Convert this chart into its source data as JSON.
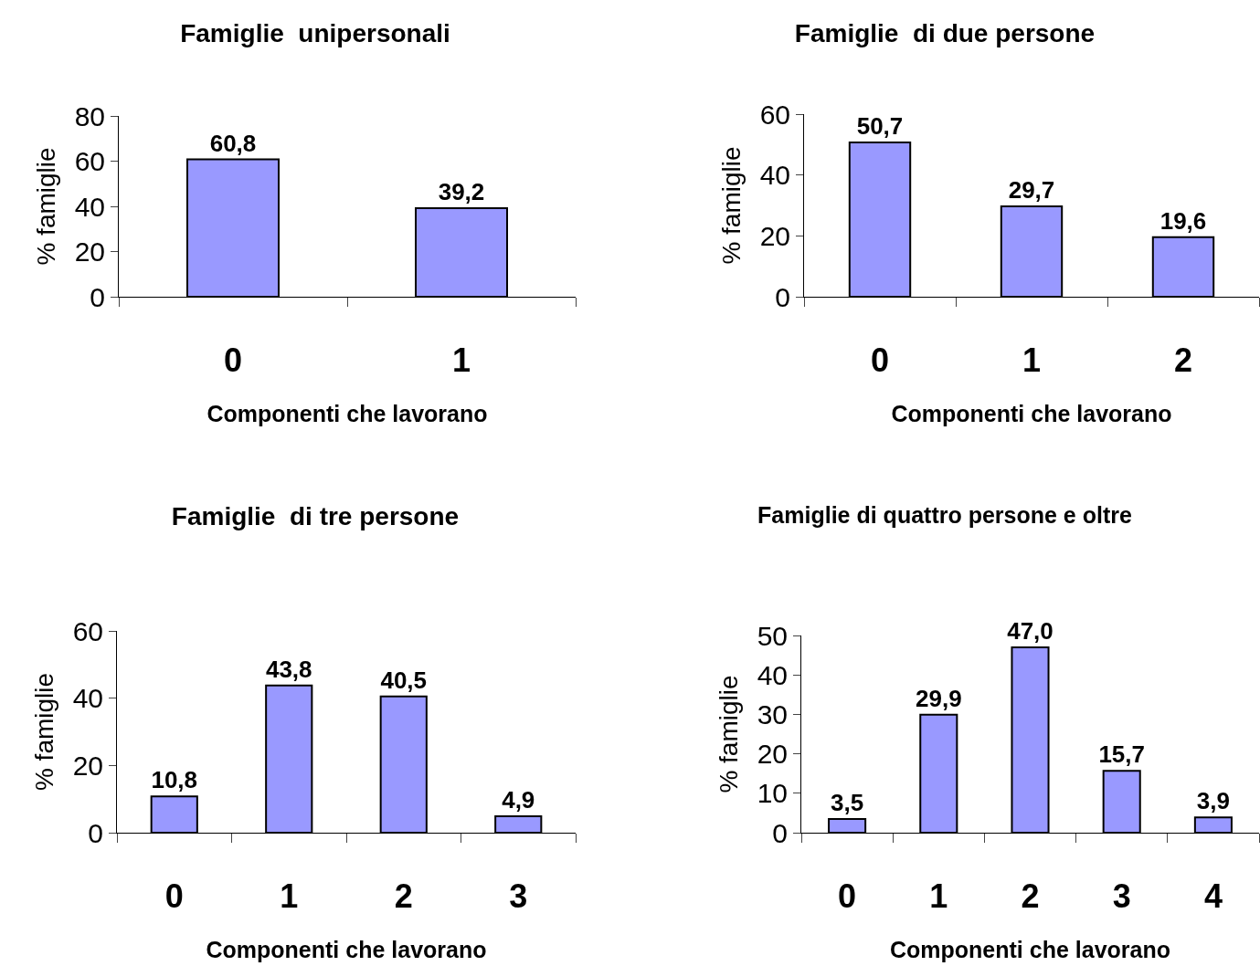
{
  "chart_data": [
    {
      "type": "bar",
      "title": "Famiglie  unipersonali",
      "xlabel": "Componenti che lavorano",
      "ylabel": "% famiglie",
      "categories": [
        "0",
        "1"
      ],
      "values": [
        60.8,
        39.2
      ],
      "value_labels": [
        "60,8",
        "39,2"
      ],
      "color": "#9999ff",
      "ylim": [
        0,
        80
      ],
      "yticks": [
        0,
        20,
        40,
        60,
        80
      ],
      "grid": false
    },
    {
      "type": "bar",
      "title": "Famiglie  di due persone",
      "xlabel": "Componenti che lavorano",
      "ylabel": "% famiglie",
      "categories": [
        "0",
        "1",
        "2"
      ],
      "values": [
        50.7,
        29.7,
        19.6
      ],
      "value_labels": [
        "50,7",
        "29,7",
        "19,6"
      ],
      "color": "#9999ff",
      "ylim": [
        0,
        60
      ],
      "yticks": [
        0,
        20,
        40,
        60
      ],
      "grid": false
    },
    {
      "type": "bar",
      "title": "Famiglie  di tre persone",
      "xlabel": "Componenti che lavorano",
      "ylabel": "% famiglie",
      "categories": [
        "0",
        "1",
        "2",
        "3"
      ],
      "values": [
        10.8,
        43.8,
        40.5,
        4.9
      ],
      "value_labels": [
        "10,8",
        "43,8",
        "40,5",
        "4,9"
      ],
      "color": "#9999ff",
      "ylim": [
        0,
        60
      ],
      "yticks": [
        0,
        20,
        40,
        60
      ],
      "grid": false
    },
    {
      "type": "bar",
      "title": "Famiglie di quattro persone e oltre",
      "xlabel": "Componenti che lavorano",
      "ylabel": "% famiglie",
      "categories": [
        "0",
        "1",
        "2",
        "3",
        "4"
      ],
      "values": [
        3.5,
        29.9,
        47.0,
        15.7,
        3.9
      ],
      "value_labels": [
        "3,5",
        "29,9",
        "47,0",
        "15,7",
        "3,9"
      ],
      "color": "#9999ff",
      "ylim": [
        0,
        50
      ],
      "yticks": [
        0,
        10,
        20,
        30,
        40,
        50
      ],
      "grid": false
    }
  ]
}
